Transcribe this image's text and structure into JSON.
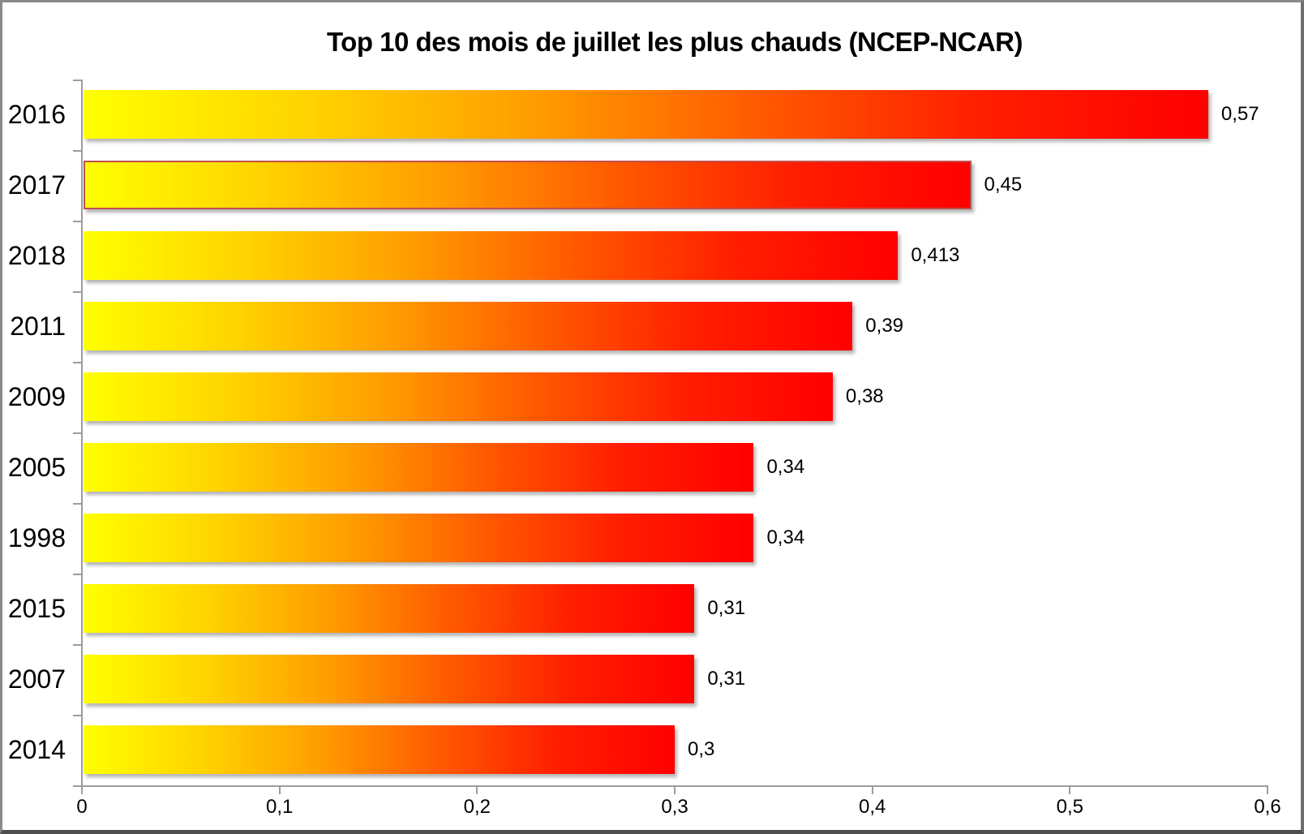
{
  "chart_data": {
    "type": "bar",
    "orientation": "horizontal",
    "title": "Top 10 des mois de juillet les plus chauds (NCEP-NCAR)",
    "categories": [
      "2016",
      "2017",
      "2018",
      "2011",
      "2009",
      "2005",
      "1998",
      "2015",
      "2007",
      "2014"
    ],
    "values": [
      0.57,
      0.45,
      0.413,
      0.39,
      0.38,
      0.34,
      0.34,
      0.31,
      0.31,
      0.3
    ],
    "value_labels": [
      "0,57",
      "0,45",
      "0,413",
      "0,39",
      "0,38",
      "0,34",
      "0,34",
      "0,31",
      "0,31",
      "0,3"
    ],
    "highlighted_category": "2017",
    "xlim": [
      0,
      0.6
    ],
    "x_tick_values": [
      0,
      0.1,
      0.2,
      0.3,
      0.4,
      0.5,
      0.6
    ],
    "x_tick_labels": [
      "0",
      "0,1",
      "0,2",
      "0,3",
      "0,4",
      "0,5",
      "0,6"
    ],
    "grid": false,
    "legend": false,
    "colors": {
      "bar_gradient": [
        "#ffff00",
        "#ffd300",
        "#ff9d00",
        "#ff5a00",
        "#ff1e00",
        "#ff0000"
      ],
      "highlight_border": "#c0504d",
      "axis": "#9d9d9d",
      "text": "#000000",
      "background": "#ffffff"
    }
  }
}
